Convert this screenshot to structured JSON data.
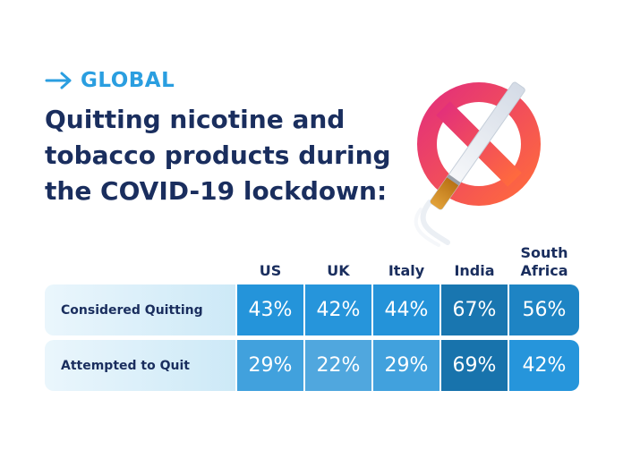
{
  "header": {
    "kicker": "GLOBAL",
    "title_lines": [
      "Quitting nicotine and",
      "tobacco products during",
      "the COVID-19 lockdown:"
    ]
  },
  "icons": {
    "arrow": "arrow-right-icon",
    "illustration": "no-smoking-icon"
  },
  "colors": {
    "accent": "#2a9ee0",
    "title": "#1a2e5e",
    "prohibition": "#f04a6a"
  },
  "chart_data": {
    "type": "table",
    "columns": [
      "US",
      "UK",
      "Italy",
      "India",
      "South Africa"
    ],
    "rows": [
      {
        "label": "Considered Quitting",
        "values": [
          "43%",
          "42%",
          "44%",
          "67%",
          "56%"
        ]
      },
      {
        "label": "Attempted to Quit",
        "values": [
          "29%",
          "22%",
          "29%",
          "69%",
          "42%"
        ]
      }
    ]
  }
}
